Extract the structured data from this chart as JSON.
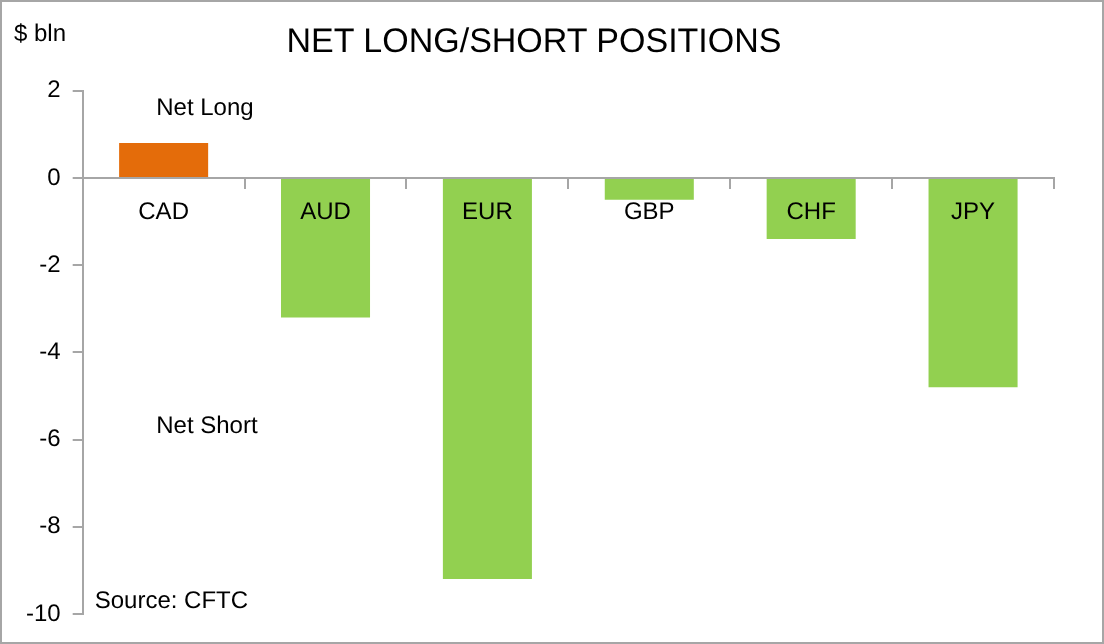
{
  "chart_data": {
    "type": "bar",
    "title": "NET LONG/SHORT POSITIONS",
    "ylabel": "$ bln",
    "categories": [
      "CAD",
      "AUD",
      "EUR",
      "GBP",
      "CHF",
      "JPY"
    ],
    "values": [
      0.8,
      -3.2,
      -9.2,
      -0.5,
      -1.4,
      -4.8
    ],
    "colors": [
      "#e46c0a",
      "#92d050",
      "#92d050",
      "#92d050",
      "#92d050",
      "#92d050"
    ],
    "ylim": [
      -10,
      2
    ],
    "yticks": [
      -10,
      -8,
      -6,
      -4,
      -2,
      0,
      2
    ],
    "grid": false,
    "legend": false,
    "annotations": [
      "Net Long",
      "Net Short",
      "Source: CFTC"
    ]
  }
}
